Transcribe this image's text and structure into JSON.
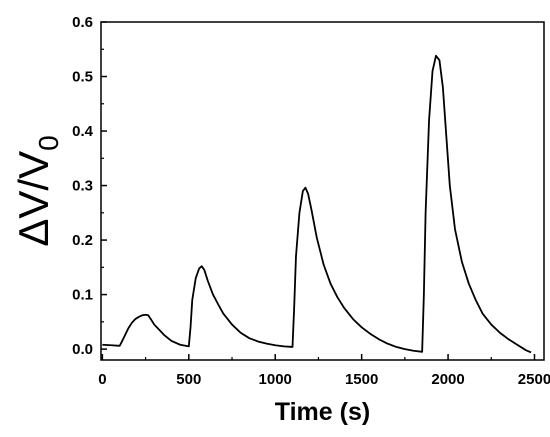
{
  "chart_data": {
    "type": "line",
    "title": "",
    "xlabel": "Time (s)",
    "ylabel": {
      "base": "ΔV/V",
      "subscript": "0"
    },
    "xlim": [
      -8,
      2555
    ],
    "ylim": [
      -0.02,
      0.6
    ],
    "xticks": [
      0,
      500,
      1000,
      1500,
      2000,
      2500
    ],
    "yticks": [
      0.0,
      0.1,
      0.2,
      0.3,
      0.4,
      0.5,
      0.6
    ],
    "xtick_labels": [
      "0",
      "500",
      "1000",
      "1500",
      "2000",
      "2500"
    ],
    "ytick_labels": [
      "0.0",
      "0.1",
      "0.2",
      "0.3",
      "0.4",
      "0.5",
      "0.6"
    ],
    "grid": false,
    "line_color": "#000000",
    "series": [
      {
        "x": [
          0,
          50,
          100,
          110,
          130,
          150,
          170,
          190,
          210,
          230,
          250,
          265,
          280,
          300,
          330,
          360,
          400,
          450,
          500,
          510,
          520,
          540,
          560,
          575,
          590,
          610,
          640,
          670,
          700,
          750,
          800,
          850,
          900,
          950,
          1000,
          1050,
          1100,
          1110,
          1120,
          1140,
          1160,
          1175,
          1190,
          1210,
          1240,
          1280,
          1320,
          1360,
          1400,
          1450,
          1500,
          1550,
          1600,
          1650,
          1700,
          1750,
          1800,
          1850,
          1860,
          1870,
          1890,
          1910,
          1930,
          1950,
          1970,
          1990,
          2010,
          2040,
          2080,
          2120,
          2160,
          2200,
          2250,
          2300,
          2350,
          2400,
          2450,
          2480
        ],
        "y": [
          0.008,
          0.007,
          0.006,
          0.012,
          0.025,
          0.038,
          0.048,
          0.055,
          0.059,
          0.062,
          0.063,
          0.062,
          0.055,
          0.045,
          0.035,
          0.025,
          0.015,
          0.008,
          0.005,
          0.04,
          0.09,
          0.13,
          0.148,
          0.152,
          0.145,
          0.125,
          0.1,
          0.082,
          0.065,
          0.045,
          0.03,
          0.02,
          0.014,
          0.01,
          0.007,
          0.005,
          0.004,
          0.08,
          0.17,
          0.25,
          0.29,
          0.296,
          0.285,
          0.255,
          0.205,
          0.155,
          0.12,
          0.095,
          0.075,
          0.055,
          0.04,
          0.028,
          0.018,
          0.01,
          0.004,
          0.0,
          -0.003,
          -0.005,
          0.1,
          0.25,
          0.42,
          0.51,
          0.538,
          0.53,
          0.48,
          0.39,
          0.3,
          0.22,
          0.16,
          0.12,
          0.09,
          0.065,
          0.045,
          0.03,
          0.018,
          0.008,
          -0.002,
          -0.006
        ]
      }
    ]
  }
}
